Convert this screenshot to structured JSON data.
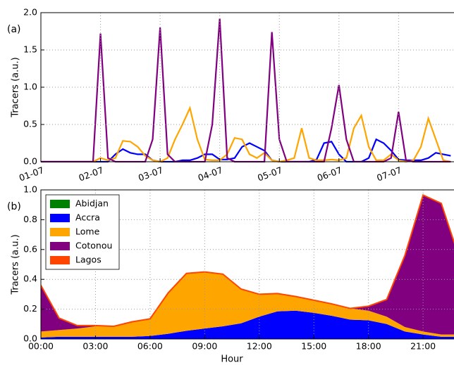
{
  "chart_data": [
    {
      "type": "line",
      "annotation": "(a)",
      "ylabel": "Tracers (a.u.)",
      "x": [
        0,
        0.125,
        0.25,
        0.375,
        0.5,
        0.625,
        0.75,
        0.875,
        1,
        1.125,
        1.25,
        1.375,
        1.5,
        1.625,
        1.75,
        1.875,
        2,
        2.125,
        2.25,
        2.375,
        2.5,
        2.625,
        2.75,
        2.875,
        3,
        3.125,
        3.25,
        3.375,
        3.5,
        3.625,
        3.75,
        3.875,
        4,
        4.125,
        4.25,
        4.375,
        4.5,
        4.625,
        4.75,
        4.875,
        5,
        5.125,
        5.25,
        5.375,
        5.5,
        5.625,
        5.75,
        5.875,
        6,
        6.125,
        6.25,
        6.375,
        6.5,
        6.625,
        6.75,
        6.875
      ],
      "xlim": [
        0,
        6.93
      ],
      "xticks": [
        {
          "value": 0,
          "label": "01-07"
        },
        {
          "value": 1,
          "label": "02-07"
        },
        {
          "value": 2,
          "label": "03-07"
        },
        {
          "value": 3,
          "label": "04-07"
        },
        {
          "value": 4,
          "label": "05-07"
        },
        {
          "value": 5,
          "label": "06-07"
        },
        {
          "value": 6,
          "label": "07-07"
        }
      ],
      "ylim": [
        0,
        2.0
      ],
      "yticks": [
        {
          "value": 0,
          "label": "0.0"
        },
        {
          "value": 0.5,
          "label": "0.5"
        },
        {
          "value": 1,
          "label": "1.0"
        },
        {
          "value": 1.5,
          "label": "1.5"
        },
        {
          "value": 2,
          "label": "2.0"
        }
      ],
      "grid": true,
      "series": [
        {
          "color": "#0000ff",
          "values": [
            0,
            0,
            0,
            0,
            0,
            0,
            0,
            0,
            0,
            0,
            0.1,
            0.17,
            0.12,
            0.1,
            0.1,
            0.02,
            0,
            0,
            0,
            0.02,
            0.02,
            0.05,
            0.1,
            0.1,
            0.03,
            0.03,
            0.05,
            0.2,
            0.25,
            0.2,
            0.15,
            0.02,
            0,
            0,
            0,
            0,
            0,
            0.03,
            0.25,
            0.27,
            0.1,
            0,
            0,
            0,
            0.05,
            0.3,
            0.25,
            0.15,
            0.03,
            0.02,
            0.02,
            0.02,
            0.05,
            0.12,
            0.1,
            0.08
          ]
        },
        {
          "color": "#ffa500",
          "values": [
            0,
            0,
            0,
            0,
            0,
            0,
            0,
            0,
            0.05,
            0.02,
            0.05,
            0.28,
            0.27,
            0.2,
            0.08,
            0.02,
            0,
            0.05,
            0.3,
            0.5,
            0.72,
            0.3,
            0.03,
            0.02,
            0.02,
            0.1,
            0.32,
            0.3,
            0.1,
            0.05,
            0.12,
            0.02,
            0,
            0.02,
            0.05,
            0.45,
            0.05,
            0.02,
            0.02,
            0.03,
            0.02,
            0.05,
            0.45,
            0.62,
            0.2,
            0.02,
            0.02,
            0.1,
            0.02,
            0,
            0.02,
            0.2,
            0.58,
            0.3,
            0.02,
            0
          ]
        },
        {
          "color": "#800080",
          "values": [
            0,
            0,
            0,
            0,
            0,
            0,
            0,
            0,
            1.72,
            0.05,
            0,
            0,
            0,
            0,
            0,
            0.3,
            1.8,
            0.1,
            0,
            0,
            0,
            0,
            0,
            0.5,
            1.92,
            0.05,
            0,
            0,
            0,
            0,
            0,
            1.74,
            0.3,
            0,
            0,
            0,
            0,
            0,
            0,
            0.45,
            1.03,
            0.3,
            0,
            0,
            0,
            0,
            0,
            0.05,
            0.67,
            0.02,
            0,
            0,
            0,
            0,
            0,
            0
          ]
        }
      ]
    },
    {
      "type": "stacked_area",
      "annotation": "(b)",
      "ylabel": "Tracers (a.u.)",
      "xlabel": "Hour",
      "x": [
        0,
        1,
        2,
        3,
        4,
        5,
        6,
        7,
        8,
        9,
        10,
        11,
        12,
        13,
        14,
        15,
        16,
        17,
        18,
        19,
        20,
        21,
        22,
        23
      ],
      "xlim": [
        0,
        22.7
      ],
      "xticks": [
        {
          "value": 0,
          "label": "00:00"
        },
        {
          "value": 3,
          "label": "03:00"
        },
        {
          "value": 6,
          "label": "06:00"
        },
        {
          "value": 9,
          "label": "09:00"
        },
        {
          "value": 12,
          "label": "12:00"
        },
        {
          "value": 15,
          "label": "15:00"
        },
        {
          "value": 18,
          "label": "18:00"
        },
        {
          "value": 21,
          "label": "21:00"
        }
      ],
      "ylim": [
        0,
        1.0
      ],
      "yticks": [
        {
          "value": 0,
          "label": "0.0"
        },
        {
          "value": 0.2,
          "label": "0.2"
        },
        {
          "value": 0.4,
          "label": "0.4"
        },
        {
          "value": 0.6,
          "label": "0.6"
        },
        {
          "value": 0.8,
          "label": "0.8"
        },
        {
          "value": 1,
          "label": "1.0"
        }
      ],
      "grid": true,
      "legend": "upper left",
      "series": [
        {
          "name": "Abidjan",
          "color": "#008000",
          "values": [
            0,
            0,
            0,
            0,
            0,
            0,
            0,
            0,
            0,
            0,
            0,
            0,
            0,
            0,
            0,
            0,
            0,
            0,
            0,
            0,
            0,
            0,
            0,
            0
          ]
        },
        {
          "name": "Accra",
          "color": "#0000ff",
          "values": [
            0.01,
            0.015,
            0.015,
            0.015,
            0.015,
            0.015,
            0.02,
            0.035,
            0.055,
            0.07,
            0.085,
            0.105,
            0.15,
            0.185,
            0.19,
            0.175,
            0.155,
            0.13,
            0.125,
            0.1,
            0.05,
            0.03,
            0.015,
            0.015
          ]
        },
        {
          "name": "Lome",
          "color": "#ffa500",
          "values": [
            0.04,
            0.045,
            0.055,
            0.07,
            0.07,
            0.1,
            0.115,
            0.275,
            0.385,
            0.38,
            0.35,
            0.23,
            0.15,
            0.12,
            0.095,
            0.085,
            0.08,
            0.075,
            0.065,
            0.05,
            0.03,
            0.02,
            0.015,
            0.015
          ]
        },
        {
          "name": "Cotonou",
          "color": "#800080",
          "values": [
            0.31,
            0.08,
            0.02,
            0.005,
            0,
            0,
            0,
            0,
            0,
            0,
            0,
            0,
            0,
            0,
            0,
            0,
            0,
            0,
            0.03,
            0.115,
            0.48,
            0.915,
            0.88,
            0.51
          ]
        },
        {
          "name": "Lagos",
          "color": "#ff4500",
          "values": [
            0,
            0,
            0,
            0,
            0,
            0,
            0,
            0,
            0,
            0,
            0,
            0,
            0,
            0,
            0,
            0,
            0,
            0,
            0,
            0,
            0,
            0,
            0,
            0
          ]
        }
      ]
    }
  ]
}
